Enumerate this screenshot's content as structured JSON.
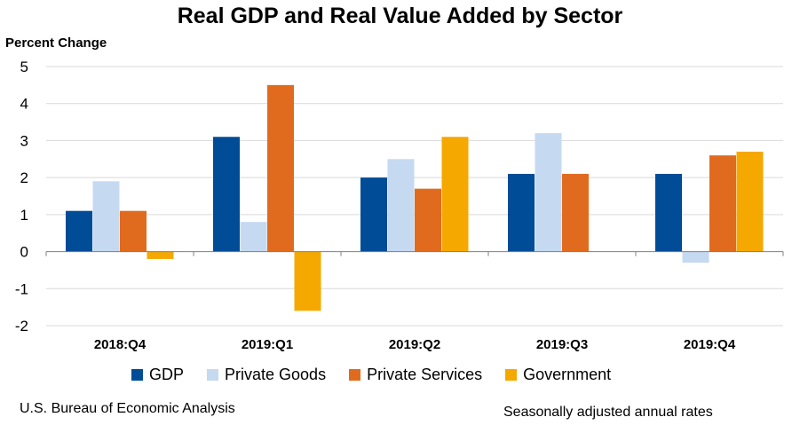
{
  "chart_data": {
    "type": "bar",
    "title": "Real GDP and Real Value Added by Sector",
    "ylabel": "Percent Change",
    "xlabel": "",
    "ylim": [
      -2,
      5
    ],
    "yticks": [
      -2,
      -1,
      0,
      1,
      2,
      3,
      4,
      5
    ],
    "grid": true,
    "legend_placement": "bottom",
    "categories": [
      "2018:Q4",
      "2019:Q1",
      "2019:Q2",
      "2019:Q3",
      "2019:Q4"
    ],
    "series": [
      {
        "name": "GDP",
        "color": "#004C97",
        "values": [
          1.1,
          3.1,
          2.0,
          2.1,
          2.1
        ]
      },
      {
        "name": "Private Goods",
        "color": "#C5D9F1",
        "values": [
          1.9,
          0.8,
          2.5,
          3.2,
          -0.3
        ]
      },
      {
        "name": "Private Services",
        "color": "#E06B1F",
        "values": [
          1.1,
          4.5,
          1.7,
          2.1,
          2.6
        ]
      },
      {
        "name": "Government",
        "color": "#F5A800",
        "values": [
          -0.2,
          -1.6,
          3.1,
          0.0,
          2.7
        ]
      }
    ]
  },
  "footer": {
    "source": "U.S. Bureau of Economic Analysis",
    "note": "Seasonally adjusted annual rates"
  }
}
